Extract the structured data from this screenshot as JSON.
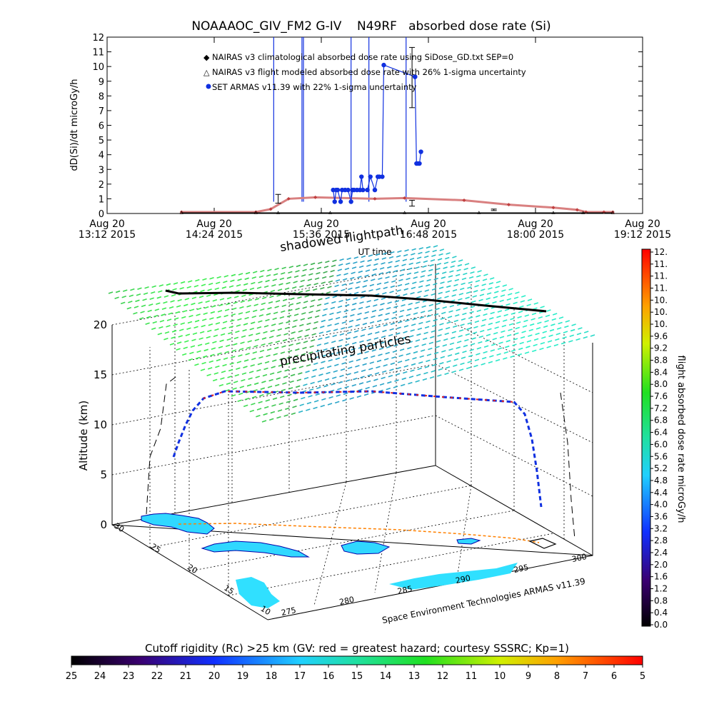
{
  "chart_data": [
    {
      "type": "line",
      "title": "NOAAAOC_GIV_FM2 G-IV    N49RF   absorbed dose rate (Si)",
      "ylabel": "dD(Si)/dt microGy/h",
      "xlabel": "UT time",
      "ylim": [
        0,
        12
      ],
      "yticks": [
        "0",
        "1",
        "2",
        "3",
        "4",
        "5",
        "6",
        "7",
        "8",
        "9",
        "10",
        "11",
        "12"
      ],
      "xticks": [
        {
          "l1": "Aug 20",
          "l2": "13:12 2015"
        },
        {
          "l1": "Aug 20",
          "l2": "14:24 2015"
        },
        {
          "l1": "Aug 20",
          "l2": "15:36 2015"
        },
        {
          "l1": "Aug 20",
          "l2": "16:48 2015"
        },
        {
          "l1": "Aug 20",
          "l2": "18:00 2015"
        },
        {
          "l1": "Aug 20",
          "l2": "19:12 2015"
        }
      ],
      "xlim_minutes": [
        0,
        360
      ],
      "legend": [
        {
          "label": "NAIRAS v3 climatological absorbed dose rate using SiDose_GD.txt SEP=0",
          "color": "#d98080"
        },
        {
          "label": "NAIRAS v3 flight modeled absorbed dose rate with 26% 1-sigma uncertainty",
          "color": "#000000"
        },
        {
          "label": "SET ARMAS v11.39 with 22% 1-sigma uncertainty",
          "color": "#1030e0"
        }
      ],
      "series": [
        {
          "name": "NAIRAS v3 climatological absorbed dose rate using SiDose_GD.txt SEP=0",
          "x_minutes": [
            50,
            100,
            110,
            122,
            140,
            180,
            200,
            240,
            270,
            300,
            316,
            322,
            334,
            340
          ],
          "values": [
            0.1,
            0.1,
            0.3,
            1.0,
            1.1,
            1.0,
            1.05,
            0.9,
            0.6,
            0.4,
            0.25,
            0.1,
            0.1,
            0.1
          ]
        },
        {
          "name": "NAIRAS v3 flight modeled absorbed dose rate with 26% 1-sigma uncertainty",
          "x_minutes": [
            50,
            100,
            115,
            150,
            200,
            250,
            300,
            320,
            340
          ],
          "values": [
            0.05,
            0.05,
            0.05,
            0.05,
            0.05,
            0.05,
            0.05,
            0.05,
            0.05
          ]
        },
        {
          "name": "SET ARMAS v11.39 with 22% 1-sigma uncertainty",
          "x_minutes": [
            152,
            153,
            154,
            155,
            157,
            158,
            160,
            162,
            164,
            165,
            166,
            168,
            170,
            171,
            172,
            175,
            177,
            180,
            182,
            183,
            185,
            186,
            207,
            207,
            208,
            209,
            210,
            211
          ],
          "values": [
            1.6,
            0.8,
            1.6,
            1.6,
            0.8,
            1.6,
            1.6,
            1.6,
            0.8,
            1.6,
            1.6,
            1.6,
            1.6,
            2.5,
            1.6,
            1.6,
            2.5,
            1.6,
            2.5,
            2.5,
            2.5,
            10.1,
            9.3,
            9.3,
            3.4,
            3.4,
            3.4,
            4.2
          ]
        }
      ],
      "error_bars": [
        {
          "x_minutes": 115,
          "value": 1.0,
          "low": 0.7,
          "high": 1.3
        },
        {
          "x_minutes": 205,
          "value": 0.7,
          "low": 0.5,
          "high": 0.9
        },
        {
          "x_minutes": 205,
          "value": 9.2,
          "low": 7.2,
          "high": 11.3
        },
        {
          "x_minutes": 260,
          "value": 0.25,
          "low": 0.2,
          "high": 0.3
        }
      ],
      "spikes_to_top_x_minutes": [
        112,
        131,
        132,
        164,
        176,
        201
      ],
      "grid": false,
      "legend_position": "top-center"
    },
    {
      "type": "scatter",
      "annotations": [
        "shadowed flightpath",
        "precipitating particles"
      ],
      "zlabel": "Altitude (km)",
      "zticks": [
        "0",
        "5",
        "10",
        "15",
        "20"
      ],
      "lat_ticks": [
        "10",
        "15",
        "20",
        "25",
        "30"
      ],
      "lon_ticks": [
        "275",
        "280",
        "285",
        "290",
        "295",
        "300"
      ],
      "credit": "Space Environment Technologies ARMAS v11.39",
      "grid": true
    },
    {
      "type": "heatmap",
      "colorbar_label": "flight absorbed dose rate microGy/h",
      "colorbar_ticks": [
        "12.",
        "11.",
        "11.",
        "11.",
        "10.",
        "10.",
        "10.",
        "9.6",
        "9.2",
        "8.8",
        "8.4",
        "8.0",
        "7.6",
        "7.2",
        "6.8",
        "6.4",
        "6.0",
        "5.6",
        "5.2",
        "4.8",
        "4.4",
        "4.0",
        "3.6",
        "3.2",
        "2.8",
        "2.4",
        "2.0",
        "1.6",
        "1.2",
        "0.8",
        "0.4",
        "0.0"
      ],
      "range": [
        0,
        12
      ]
    },
    {
      "type": "heatmap",
      "colorbar_label": "Cutoff rigidity (Rc) >25 km (GV: red = greatest hazard; courtesy SSSRC; Kp=1)",
      "colorbar_ticks": [
        "25",
        "24",
        "23",
        "22",
        "21",
        "20",
        "19",
        "18",
        "17",
        "16",
        "15",
        "14",
        "13",
        "12",
        "11",
        "10",
        "9",
        "8",
        "7",
        "6",
        "5"
      ],
      "range": [
        25,
        5
      ]
    }
  ]
}
